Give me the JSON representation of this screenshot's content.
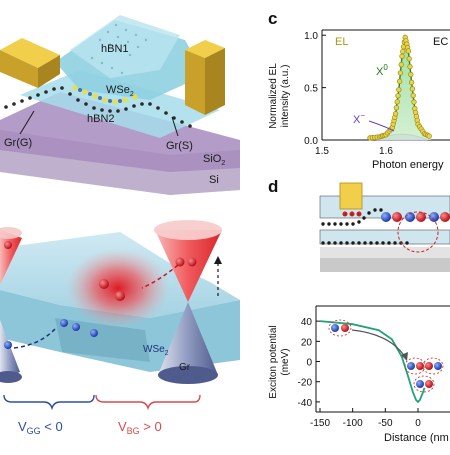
{
  "panel_labels": {
    "c": "c",
    "d": "d"
  },
  "device": {
    "hbn1": "hBN1",
    "wse2": "WSe",
    "wse2_sub": "2",
    "hbn2": "hBN2",
    "gr_g": "Gr(G)",
    "gr_s": "Gr(S)",
    "sio2": "SiO",
    "sio2_sub": "2",
    "si": "Si"
  },
  "cones": {
    "wse2": "WSe",
    "wse2_sub": "2",
    "gr": "Gr",
    "vgg": "V",
    "vgg_sub": "GG",
    "vgg_rel": " < 0",
    "vbg": "V",
    "vbg_sub": "BG",
    "vbg_rel": " > 0"
  },
  "chart_data": [
    {
      "type": "line",
      "panel": "c",
      "ylabel_line1": "Normalized  EL",
      "ylabel_line2": "intensity (a.u.)",
      "xlabel": "Photon energy",
      "legend": [
        "EL",
        "EC"
      ],
      "xlim": [
        1.5,
        1.7
      ],
      "ylim": [
        0,
        1.05
      ],
      "xticks": [
        "1.5",
        "1.6"
      ],
      "yticks": [
        "0.0",
        "0.5",
        "1.0"
      ],
      "annotations": {
        "x0": "X",
        "x0_sup": "0",
        "xminus": "X",
        "xminus_sup": "−"
      },
      "series": [
        {
          "name": "EL",
          "x": [
            1.575,
            1.59,
            1.6,
            1.61,
            1.615,
            1.62,
            1.625,
            1.63,
            1.635,
            1.64,
            1.645,
            1.65,
            1.66,
            1.67
          ],
          "values": [
            0.02,
            0.03,
            0.05,
            0.12,
            0.25,
            0.48,
            0.8,
            0.98,
            0.85,
            0.55,
            0.3,
            0.15,
            0.06,
            0.03
          ]
        }
      ]
    },
    {
      "type": "line",
      "panel": "d",
      "ylabel_line1": "Exciton potential",
      "ylabel_line2": "(meV)",
      "xlabel": "Distance (nm",
      "xlim": [
        -150,
        10
      ],
      "ylim": [
        -50,
        55
      ],
      "xticks": [
        "-150",
        "-100",
        "-50",
        "0"
      ],
      "yticks": [
        "-40",
        "-20",
        "0",
        "20",
        "40"
      ],
      "series": [
        {
          "name": "",
          "x": [
            -150,
            -100,
            -60,
            -40,
            -25,
            -15,
            -8,
            -3,
            0,
            3,
            8,
            10
          ],
          "values": [
            40,
            37,
            31,
            22,
            5,
            -15,
            -30,
            -38,
            -40,
            -38,
            -30,
            -26
          ]
        }
      ]
    }
  ]
}
